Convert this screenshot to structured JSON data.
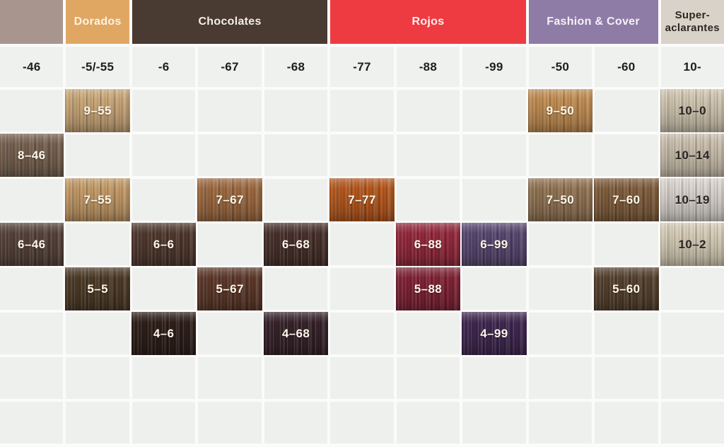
{
  "palette": {
    "page_background": "#fbfbfa",
    "empty_cell_background": "#eef0ee",
    "label_row_background": "#eff1ef",
    "column_label_text": "#1e1d1b"
  },
  "categories": [
    {
      "name": "",
      "color": "#a8968e",
      "text_color": "#ffffff"
    },
    {
      "name": "Dorados",
      "color": "#e0a763",
      "text_color": "#fbf3e4"
    },
    {
      "name": "Chocolates",
      "color": "#493a32",
      "text_color": "#f3efe9"
    },
    {
      "name": "Rojos",
      "color": "#ee3b42",
      "text_color": "#fdf1ee"
    },
    {
      "name": "Fashion & Cover",
      "color": "#8e7ca7",
      "text_color": "#f5f1f6"
    },
    {
      "name": "Super-aclarantes",
      "color": "#d9d2c9",
      "text_color": "#2b2724"
    }
  ],
  "columns": [
    "-46",
    "-5/-55",
    "-6",
    "-67",
    "-68",
    "-77",
    "-88",
    "-99",
    "-50",
    "-60",
    "10-"
  ],
  "grid": {
    "rows": 8,
    "cols": 11
  },
  "swatches": [
    {
      "code": "9–55",
      "row": 1,
      "col": 2,
      "base": "#c5a376",
      "text": "#fff7e9"
    },
    {
      "code": "9–50",
      "row": 1,
      "col": 9,
      "base": "#be8b51",
      "text": "#fff7e9"
    },
    {
      "code": "10–0",
      "row": 1,
      "col": 11,
      "base": "#ccc1ac",
      "text": "#2a2521"
    },
    {
      "code": "8–46",
      "row": 2,
      "col": 1,
      "base": "#75604f",
      "text": "#fff7e9"
    },
    {
      "code": "10–14",
      "row": 2,
      "col": 11,
      "base": "#c6bba9",
      "text": "#2a2521"
    },
    {
      "code": "7–55",
      "row": 3,
      "col": 2,
      "base": "#bf9765",
      "text": "#fff7e9"
    },
    {
      "code": "7–67",
      "row": 3,
      "col": 4,
      "base": "#9a6840",
      "text": "#fff7e9"
    },
    {
      "code": "7–77",
      "row": 3,
      "col": 6,
      "base": "#b2571e",
      "text": "#fff7e9"
    },
    {
      "code": "7–50",
      "row": 3,
      "col": 9,
      "base": "#8f7252",
      "text": "#fff7e9"
    },
    {
      "code": "7–60",
      "row": 3,
      "col": 10,
      "base": "#7e5c3c",
      "text": "#fff7e9"
    },
    {
      "code": "10–19",
      "row": 3,
      "col": 11,
      "base": "#d6d0ca",
      "text": "#2a2521"
    },
    {
      "code": "6–46",
      "row": 4,
      "col": 1,
      "base": "#55423a",
      "text": "#fff7e9"
    },
    {
      "code": "6–6",
      "row": 4,
      "col": 3,
      "base": "#4f382e",
      "text": "#fff7e9"
    },
    {
      "code": "6–68",
      "row": 4,
      "col": 5,
      "base": "#47302b",
      "text": "#fff7e9"
    },
    {
      "code": "6–88",
      "row": 4,
      "col": 7,
      "base": "#92293c",
      "text": "#fff7e9"
    },
    {
      "code": "6–99",
      "row": 4,
      "col": 8,
      "base": "#57476f",
      "text": "#fff7e9"
    },
    {
      "code": "10–2",
      "row": 4,
      "col": 11,
      "base": "#d2c8b3",
      "text": "#2a2521"
    },
    {
      "code": "5–5",
      "row": 5,
      "col": 2,
      "base": "#4c3a27",
      "text": "#fff7e9"
    },
    {
      "code": "5–67",
      "row": 5,
      "col": 4,
      "base": "#5c382a",
      "text": "#fff7e9"
    },
    {
      "code": "5–88",
      "row": 5,
      "col": 7,
      "base": "#7e2335",
      "text": "#fff7e9"
    },
    {
      "code": "5–60",
      "row": 5,
      "col": 10,
      "base": "#54412e",
      "text": "#fff7e9"
    },
    {
      "code": "4–6",
      "row": 6,
      "col": 3,
      "base": "#2e1f1a",
      "text": "#fff7e9"
    },
    {
      "code": "4–68",
      "row": 6,
      "col": 5,
      "base": "#36232a",
      "text": "#fff7e9"
    },
    {
      "code": "4–99",
      "row": 6,
      "col": 8,
      "base": "#402850",
      "text": "#fff7e9"
    }
  ],
  "chart_data": {
    "type": "table",
    "title": "Hair color shade chart",
    "column_headers": [
      "-46",
      "-5/-55",
      "-6",
      "-67",
      "-68",
      "-77",
      "-88",
      "-99",
      "-50",
      "-60",
      "10-"
    ],
    "category_groups": [
      {
        "label": "",
        "columns": [
          "-46"
        ]
      },
      {
        "label": "Dorados",
        "columns": [
          "-5/-55"
        ]
      },
      {
        "label": "Chocolates",
        "columns": [
          "-6",
          "-67",
          "-68"
        ]
      },
      {
        "label": "Rojos",
        "columns": [
          "-77",
          "-88",
          "-99"
        ]
      },
      {
        "label": "Fashion & Cover",
        "columns": [
          "-50",
          "-60"
        ]
      },
      {
        "label": "Super-aclarantes",
        "columns": [
          "10-"
        ]
      }
    ],
    "cells_by_column": {
      "-46": [
        "8-46",
        "6-46"
      ],
      "-5/-55": [
        "9-55",
        "7-55",
        "5-5"
      ],
      "-6": [
        "6-6",
        "4-6"
      ],
      "-67": [
        "7-67",
        "5-67"
      ],
      "-68": [
        "6-68",
        "4-68"
      ],
      "-77": [
        "7-77"
      ],
      "-88": [
        "6-88",
        "5-88"
      ],
      "-99": [
        "6-99",
        "4-99"
      ],
      "-50": [
        "9-50",
        "7-50"
      ],
      "-60": [
        "7-60",
        "5-60"
      ],
      "10-": [
        "10-0",
        "10-14",
        "10-19",
        "10-2"
      ]
    }
  }
}
